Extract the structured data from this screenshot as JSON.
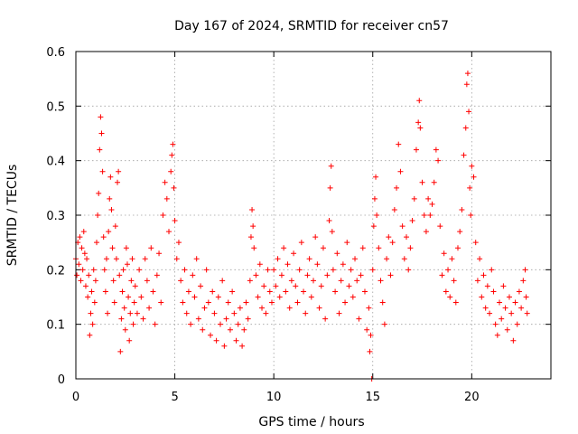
{
  "chart_data": {
    "type": "scatter",
    "title": "Day 167 of 2024, SRMTID for receiver cn57",
    "xlabel": "GPS time / hours",
    "ylabel": "SRMTID / TECUs",
    "xlim": [
      0,
      24
    ],
    "ylim": [
      0,
      0.6
    ],
    "xticks": [
      0,
      5,
      10,
      15,
      20
    ],
    "yticks": [
      0,
      0.1,
      0.2,
      0.3,
      0.4,
      0.5,
      0.6
    ],
    "xtick_labels": [
      "0",
      "5",
      "10",
      "15",
      "20"
    ],
    "ytick_labels": [
      "0",
      "0.1",
      "0.2",
      "0.3",
      "0.4",
      "0.5",
      "0.6"
    ],
    "grid": true,
    "marker": "+",
    "color": "#ff0000",
    "series": [
      {
        "name": "SRMTID",
        "points": [
          [
            0.0,
            0.22
          ],
          [
            0.05,
            0.19
          ],
          [
            0.1,
            0.25
          ],
          [
            0.15,
            0.21
          ],
          [
            0.2,
            0.26
          ],
          [
            0.25,
            0.18
          ],
          [
            0.3,
            0.24
          ],
          [
            0.35,
            0.2
          ],
          [
            0.4,
            0.27
          ],
          [
            0.45,
            0.23
          ],
          [
            0.5,
            0.17
          ],
          [
            0.55,
            0.22
          ],
          [
            0.6,
            0.15
          ],
          [
            0.65,
            0.19
          ],
          [
            0.7,
            0.08
          ],
          [
            0.75,
            0.12
          ],
          [
            0.8,
            0.16
          ],
          [
            0.85,
            0.1
          ],
          [
            0.9,
            0.2
          ],
          [
            0.95,
            0.14
          ],
          [
            1.0,
            0.18
          ],
          [
            1.05,
            0.25
          ],
          [
            1.1,
            0.3
          ],
          [
            1.15,
            0.34
          ],
          [
            1.2,
            0.42
          ],
          [
            1.25,
            0.48
          ],
          [
            1.3,
            0.45
          ],
          [
            1.35,
            0.38
          ],
          [
            1.4,
            0.26
          ],
          [
            1.45,
            0.2
          ],
          [
            1.5,
            0.16
          ],
          [
            1.55,
            0.22
          ],
          [
            1.6,
            0.12
          ],
          [
            1.65,
            0.27
          ],
          [
            1.7,
            0.33
          ],
          [
            1.75,
            0.37
          ],
          [
            1.8,
            0.31
          ],
          [
            1.85,
            0.24
          ],
          [
            1.9,
            0.18
          ],
          [
            1.95,
            0.14
          ],
          [
            2.0,
            0.28
          ],
          [
            2.05,
            0.22
          ],
          [
            2.1,
            0.36
          ],
          [
            2.15,
            0.38
          ],
          [
            2.2,
            0.19
          ],
          [
            2.25,
            0.05
          ],
          [
            2.3,
            0.11
          ],
          [
            2.35,
            0.16
          ],
          [
            2.4,
            0.2
          ],
          [
            2.45,
            0.13
          ],
          [
            2.5,
            0.09
          ],
          [
            2.55,
            0.24
          ],
          [
            2.6,
            0.21
          ],
          [
            2.65,
            0.15
          ],
          [
            2.7,
            0.07
          ],
          [
            2.75,
            0.12
          ],
          [
            2.8,
            0.18
          ],
          [
            2.85,
            0.22
          ],
          [
            2.9,
            0.1
          ],
          [
            2.95,
            0.14
          ],
          [
            3.0,
            0.17
          ],
          [
            3.1,
            0.12
          ],
          [
            3.2,
            0.2
          ],
          [
            3.3,
            0.15
          ],
          [
            3.4,
            0.11
          ],
          [
            3.5,
            0.22
          ],
          [
            3.6,
            0.18
          ],
          [
            3.7,
            0.13
          ],
          [
            3.8,
            0.24
          ],
          [
            3.9,
            0.16
          ],
          [
            4.0,
            0.1
          ],
          [
            4.1,
            0.19
          ],
          [
            4.2,
            0.23
          ],
          [
            4.3,
            0.14
          ],
          [
            4.4,
            0.3
          ],
          [
            4.5,
            0.36
          ],
          [
            4.6,
            0.33
          ],
          [
            4.7,
            0.27
          ],
          [
            4.8,
            0.38
          ],
          [
            4.85,
            0.41
          ],
          [
            4.9,
            0.43
          ],
          [
            4.95,
            0.35
          ],
          [
            5.0,
            0.29
          ],
          [
            5.1,
            0.22
          ],
          [
            5.2,
            0.25
          ],
          [
            5.3,
            0.18
          ],
          [
            5.4,
            0.14
          ],
          [
            5.5,
            0.2
          ],
          [
            5.6,
            0.12
          ],
          [
            5.7,
            0.16
          ],
          [
            5.8,
            0.1
          ],
          [
            5.9,
            0.19
          ],
          [
            6.0,
            0.15
          ],
          [
            6.1,
            0.22
          ],
          [
            6.2,
            0.11
          ],
          [
            6.3,
            0.17
          ],
          [
            6.4,
            0.09
          ],
          [
            6.5,
            0.13
          ],
          [
            6.6,
            0.2
          ],
          [
            6.7,
            0.14
          ],
          [
            6.8,
            0.08
          ],
          [
            6.9,
            0.16
          ],
          [
            7.0,
            0.12
          ],
          [
            7.1,
            0.07
          ],
          [
            7.2,
            0.15
          ],
          [
            7.3,
            0.1
          ],
          [
            7.4,
            0.18
          ],
          [
            7.5,
            0.06
          ],
          [
            7.6,
            0.11
          ],
          [
            7.7,
            0.14
          ],
          [
            7.8,
            0.09
          ],
          [
            7.9,
            0.16
          ],
          [
            8.0,
            0.12
          ],
          [
            8.1,
            0.07
          ],
          [
            8.2,
            0.1
          ],
          [
            8.3,
            0.13
          ],
          [
            8.4,
            0.06
          ],
          [
            8.5,
            0.09
          ],
          [
            8.6,
            0.14
          ],
          [
            8.7,
            0.11
          ],
          [
            8.8,
            0.18
          ],
          [
            8.85,
            0.26
          ],
          [
            8.9,
            0.31
          ],
          [
            8.95,
            0.28
          ],
          [
            9.0,
            0.24
          ],
          [
            9.1,
            0.19
          ],
          [
            9.2,
            0.15
          ],
          [
            9.3,
            0.21
          ],
          [
            9.4,
            0.13
          ],
          [
            9.5,
            0.17
          ],
          [
            9.6,
            0.12
          ],
          [
            9.7,
            0.2
          ],
          [
            9.8,
            0.16
          ],
          [
            9.9,
            0.14
          ],
          [
            10.0,
            0.2
          ],
          [
            10.1,
            0.17
          ],
          [
            10.2,
            0.22
          ],
          [
            10.3,
            0.15
          ],
          [
            10.4,
            0.19
          ],
          [
            10.5,
            0.24
          ],
          [
            10.6,
            0.16
          ],
          [
            10.7,
            0.21
          ],
          [
            10.8,
            0.13
          ],
          [
            10.9,
            0.18
          ],
          [
            11.0,
            0.23
          ],
          [
            11.1,
            0.17
          ],
          [
            11.2,
            0.14
          ],
          [
            11.3,
            0.2
          ],
          [
            11.4,
            0.25
          ],
          [
            11.5,
            0.16
          ],
          [
            11.6,
            0.12
          ],
          [
            11.7,
            0.19
          ],
          [
            11.8,
            0.22
          ],
          [
            11.9,
            0.15
          ],
          [
            12.0,
            0.18
          ],
          [
            12.1,
            0.26
          ],
          [
            12.2,
            0.21
          ],
          [
            12.3,
            0.13
          ],
          [
            12.4,
            0.17
          ],
          [
            12.5,
            0.24
          ],
          [
            12.6,
            0.11
          ],
          [
            12.7,
            0.19
          ],
          [
            12.8,
            0.29
          ],
          [
            12.85,
            0.35
          ],
          [
            12.9,
            0.39
          ],
          [
            12.95,
            0.27
          ],
          [
            13.0,
            0.2
          ],
          [
            13.1,
            0.16
          ],
          [
            13.2,
            0.23
          ],
          [
            13.3,
            0.12
          ],
          [
            13.4,
            0.18
          ],
          [
            13.5,
            0.21
          ],
          [
            13.6,
            0.14
          ],
          [
            13.7,
            0.25
          ],
          [
            13.8,
            0.17
          ],
          [
            13.9,
            0.2
          ],
          [
            14.0,
            0.15
          ],
          [
            14.1,
            0.22
          ],
          [
            14.2,
            0.18
          ],
          [
            14.3,
            0.11
          ],
          [
            14.4,
            0.19
          ],
          [
            14.5,
            0.24
          ],
          [
            14.6,
            0.16
          ],
          [
            14.7,
            0.09
          ],
          [
            14.8,
            0.13
          ],
          [
            14.85,
            0.05
          ],
          [
            14.9,
            0.08
          ],
          [
            14.95,
            0.0
          ],
          [
            15.0,
            0.2
          ],
          [
            15.05,
            0.28
          ],
          [
            15.1,
            0.33
          ],
          [
            15.15,
            0.37
          ],
          [
            15.2,
            0.3
          ],
          [
            15.3,
            0.24
          ],
          [
            15.4,
            0.18
          ],
          [
            15.5,
            0.14
          ],
          [
            15.6,
            0.1
          ],
          [
            15.7,
            0.22
          ],
          [
            15.8,
            0.26
          ],
          [
            15.9,
            0.19
          ],
          [
            16.0,
            0.25
          ],
          [
            16.1,
            0.31
          ],
          [
            16.2,
            0.35
          ],
          [
            16.3,
            0.43
          ],
          [
            16.4,
            0.38
          ],
          [
            16.5,
            0.28
          ],
          [
            16.6,
            0.22
          ],
          [
            16.7,
            0.26
          ],
          [
            16.8,
            0.2
          ],
          [
            16.9,
            0.24
          ],
          [
            17.0,
            0.29
          ],
          [
            17.1,
            0.33
          ],
          [
            17.2,
            0.42
          ],
          [
            17.3,
            0.47
          ],
          [
            17.35,
            0.51
          ],
          [
            17.4,
            0.46
          ],
          [
            17.5,
            0.36
          ],
          [
            17.6,
            0.3
          ],
          [
            17.7,
            0.27
          ],
          [
            17.8,
            0.33
          ],
          [
            17.9,
            0.3
          ],
          [
            18.0,
            0.32
          ],
          [
            18.1,
            0.36
          ],
          [
            18.2,
            0.42
          ],
          [
            18.3,
            0.4
          ],
          [
            18.4,
            0.28
          ],
          [
            18.5,
            0.19
          ],
          [
            18.6,
            0.23
          ],
          [
            18.7,
            0.16
          ],
          [
            18.8,
            0.2
          ],
          [
            18.9,
            0.15
          ],
          [
            19.0,
            0.22
          ],
          [
            19.1,
            0.18
          ],
          [
            19.2,
            0.14
          ],
          [
            19.3,
            0.24
          ],
          [
            19.4,
            0.27
          ],
          [
            19.5,
            0.31
          ],
          [
            19.6,
            0.41
          ],
          [
            19.7,
            0.46
          ],
          [
            19.75,
            0.54
          ],
          [
            19.8,
            0.56
          ],
          [
            19.85,
            0.49
          ],
          [
            19.9,
            0.35
          ],
          [
            19.95,
            0.3
          ],
          [
            20.0,
            0.39
          ],
          [
            20.1,
            0.37
          ],
          [
            20.2,
            0.25
          ],
          [
            20.3,
            0.18
          ],
          [
            20.4,
            0.22
          ],
          [
            20.5,
            0.15
          ],
          [
            20.6,
            0.19
          ],
          [
            20.7,
            0.13
          ],
          [
            20.8,
            0.17
          ],
          [
            20.9,
            0.12
          ],
          [
            21.0,
            0.2
          ],
          [
            21.1,
            0.16
          ],
          [
            21.2,
            0.1
          ],
          [
            21.3,
            0.08
          ],
          [
            21.4,
            0.14
          ],
          [
            21.5,
            0.11
          ],
          [
            21.6,
            0.17
          ],
          [
            21.7,
            0.13
          ],
          [
            21.8,
            0.09
          ],
          [
            21.9,
            0.15
          ],
          [
            22.0,
            0.12
          ],
          [
            22.1,
            0.07
          ],
          [
            22.2,
            0.14
          ],
          [
            22.3,
            0.1
          ],
          [
            22.4,
            0.16
          ],
          [
            22.5,
            0.13
          ],
          [
            22.6,
            0.18
          ],
          [
            22.7,
            0.2
          ],
          [
            22.75,
            0.15
          ],
          [
            22.8,
            0.12
          ]
        ]
      }
    ]
  }
}
